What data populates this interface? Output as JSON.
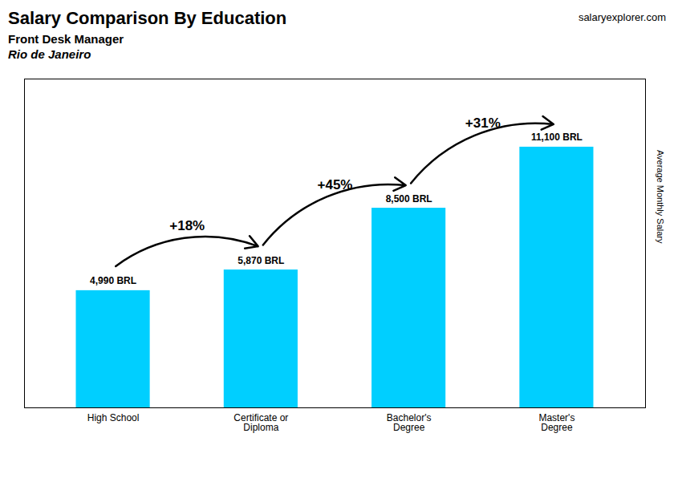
{
  "chart_data": {
    "type": "bar",
    "title": "Salary Comparison By Education",
    "subtitle": [
      "Front Desk Manager",
      "Rio de Janeiro"
    ],
    "ylabel": "Average Monthly Salary",
    "categories": [
      "High School",
      "Certificate or\nDiploma",
      "Bachelor's\nDegree",
      "Master's\nDegree"
    ],
    "values": [
      4990,
      5870,
      8500,
      11100
    ],
    "value_labels": [
      "4,990 BRL",
      "5,870 BRL",
      "8,500 BRL",
      "11,100 BRL"
    ],
    "data_labels": true,
    "color": "#00cfff",
    "ylim": [
      0,
      14000
    ],
    "tick_labels": "x",
    "grid": false,
    "annotations": [
      {
        "text": "+18%",
        "from": "High School",
        "to": "Certificate or\nDiploma"
      },
      {
        "text": "+45%",
        "from": "Certificate or\nDiploma",
        "to": "Bachelor's\nDegree"
      },
      {
        "text": "+31%",
        "from": "Bachelor's\nDegree",
        "to": "Master's\nDegree"
      },
      {
        "text": "salaryexplorer.com"
      }
    ]
  }
}
